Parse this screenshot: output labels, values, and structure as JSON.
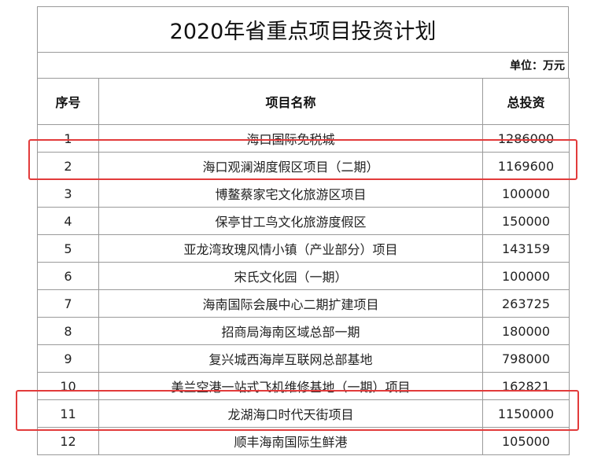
{
  "title": "2020年省重点项目投资计划",
  "unit": "单位：万元",
  "headers": {
    "index": "序号",
    "name": "项目名称",
    "amount": "总投资"
  },
  "rows": [
    {
      "index": "1",
      "name": "海口国际免税城",
      "amount": "1286000"
    },
    {
      "index": "2",
      "name": "海口观澜湖度假区项目（二期）",
      "amount": "1169600",
      "highlighted": true
    },
    {
      "index": "3",
      "name": "博鳌蔡家宅文化旅游区项目",
      "amount": "100000"
    },
    {
      "index": "4",
      "name": "保亭甘工鸟文化旅游度假区",
      "amount": "150000"
    },
    {
      "index": "5",
      "name": "亚龙湾玫瑰风情小镇（产业部分）项目",
      "amount": "143159"
    },
    {
      "index": "6",
      "name": "宋氏文化园（一期）",
      "amount": "100000"
    },
    {
      "index": "7",
      "name": "海南国际会展中心二期扩建项目",
      "amount": "263725"
    },
    {
      "index": "8",
      "name": "招商局海南区域总部一期",
      "amount": "180000"
    },
    {
      "index": "9",
      "name": "复兴城西海岸互联网总部基地",
      "amount": "798000"
    },
    {
      "index": "10",
      "name": "美兰空港一站式飞机维修基地（一期）项目",
      "amount": "162821"
    },
    {
      "index": "11",
      "name": "龙湖海口时代天街项目",
      "amount": "1150000",
      "highlighted": true
    },
    {
      "index": "12",
      "name": "顺丰海南国际生鲜港",
      "amount": "105000"
    }
  ],
  "highlight_color": "#e23b3b"
}
